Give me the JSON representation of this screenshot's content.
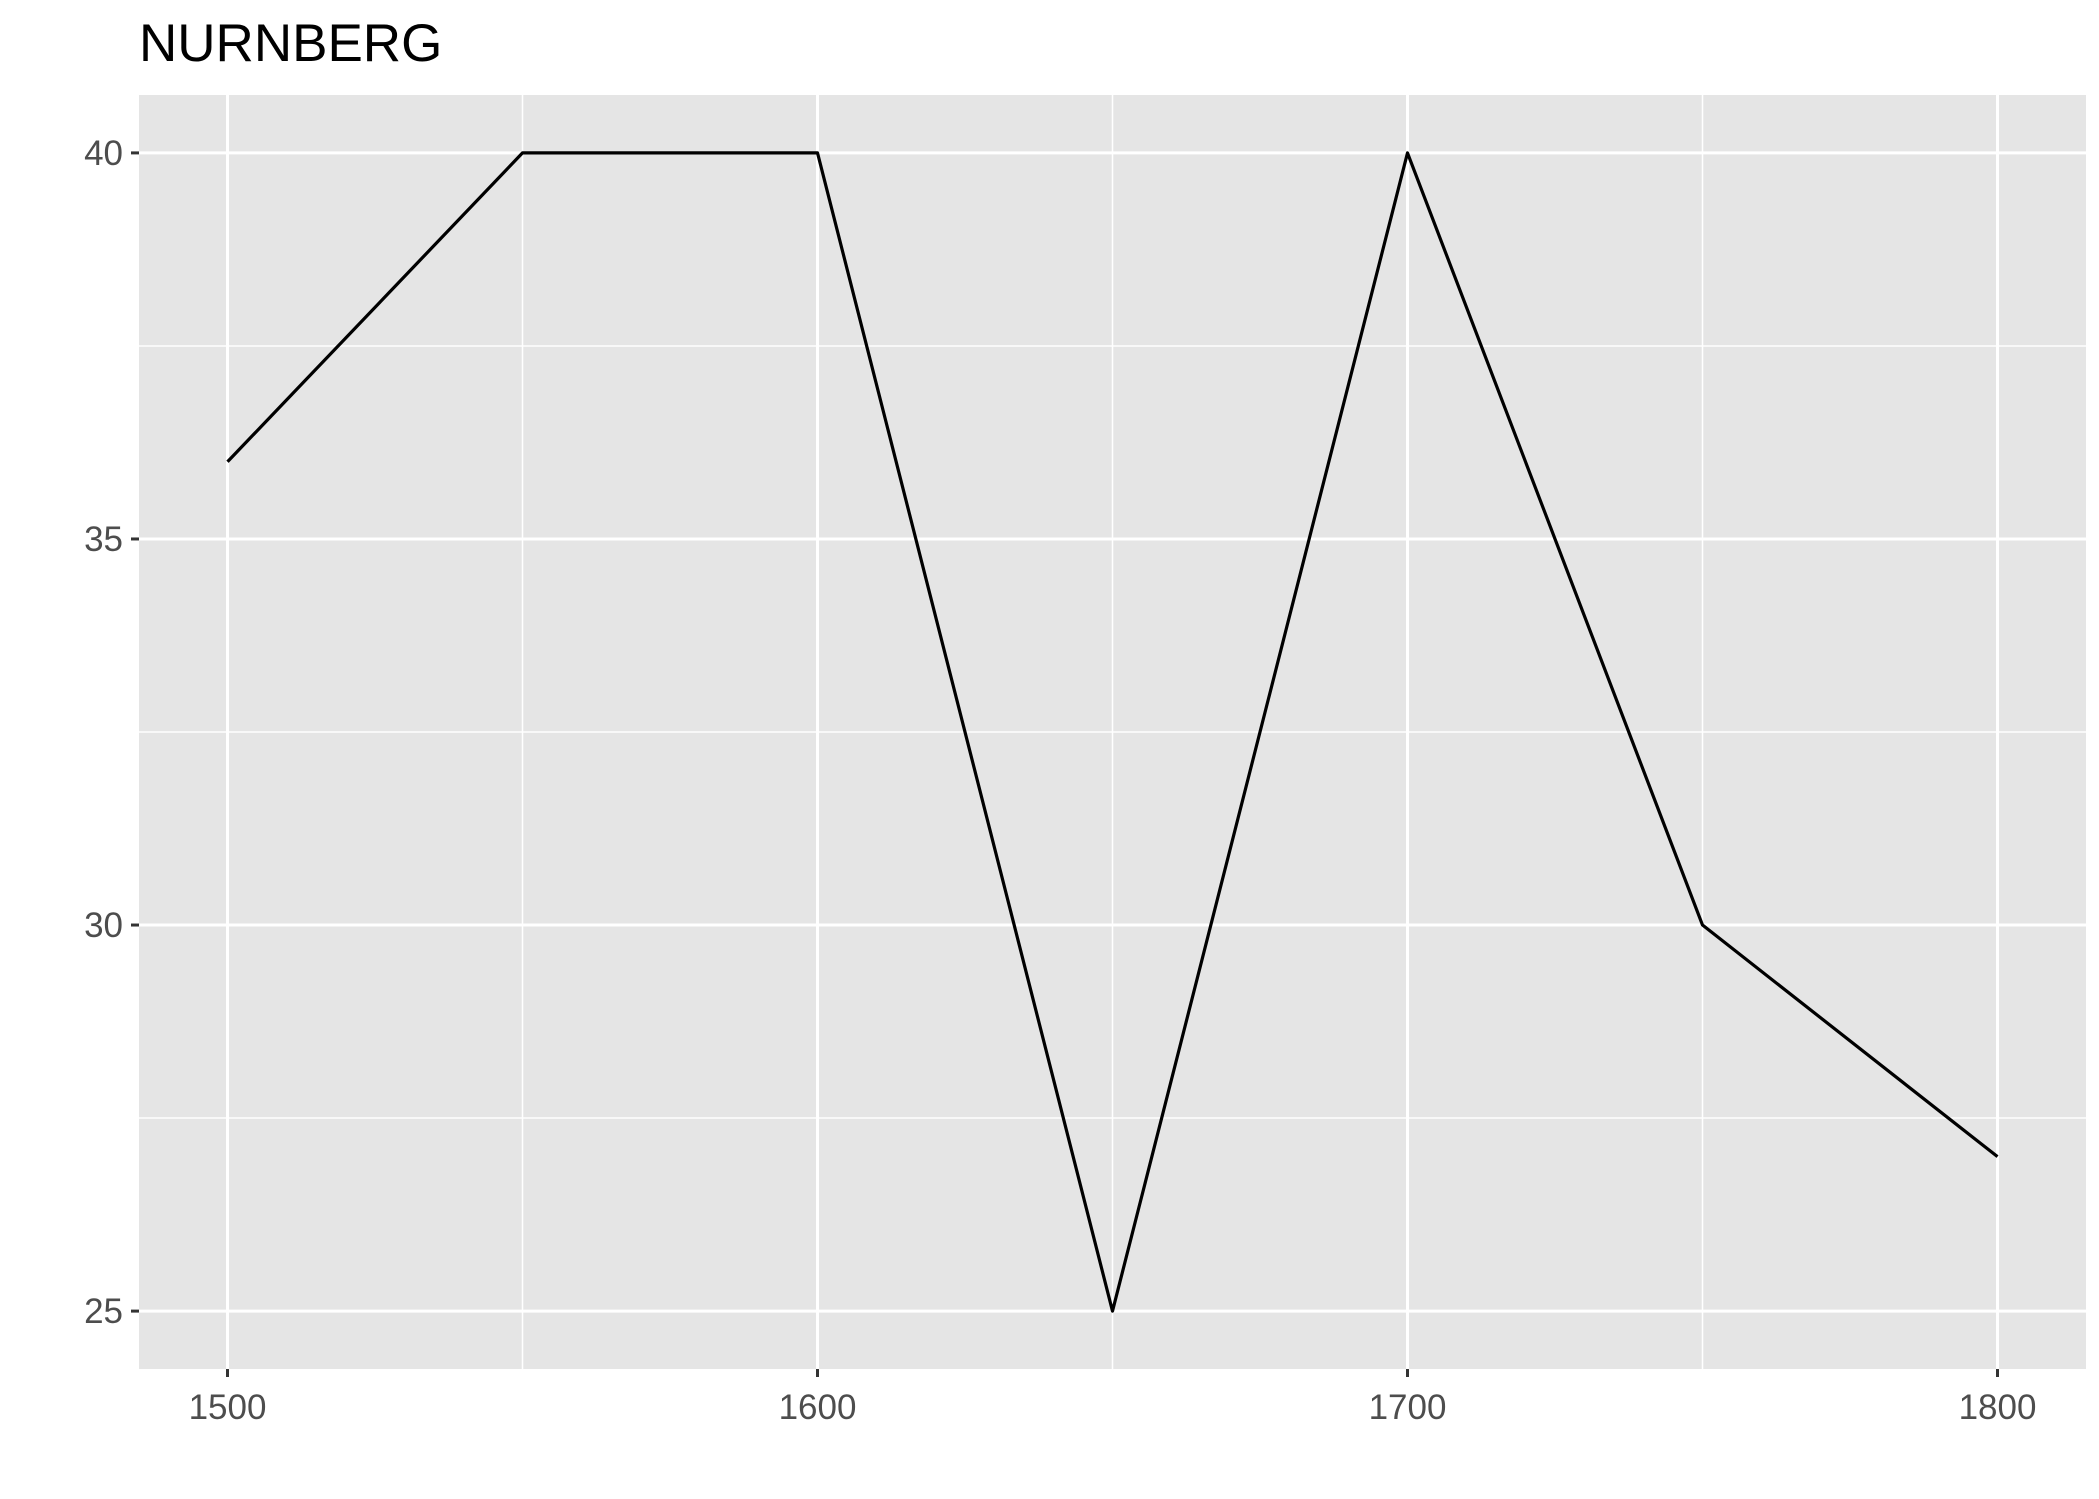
{
  "chart_data": {
    "type": "line",
    "title": "NURNBERG",
    "xlabel": "",
    "ylabel": "",
    "x": [
      1500,
      1550,
      1600,
      1650,
      1700,
      1750,
      1800
    ],
    "series": [
      {
        "values": [
          36,
          40,
          40,
          25,
          40,
          30,
          27
        ]
      }
    ],
    "xlim": [
      1485,
      1815
    ],
    "ylim": [
      24.25,
      40.75
    ],
    "x_ticks": [
      1500,
      1600,
      1700,
      1800
    ],
    "x_tick_labels": [
      "1500",
      "1600",
      "1700",
      "1800"
    ],
    "x_minor_ticks": [
      1550,
      1650,
      1750
    ],
    "y_ticks": [
      25,
      30,
      35,
      40
    ],
    "y_tick_labels": [
      "25",
      "30",
      "35",
      "40"
    ],
    "y_minor_ticks": [
      27.5,
      32.5,
      37.5
    ],
    "grid": true,
    "legend": "none",
    "colors": {
      "panel_background": "#e5e5e5",
      "grid_line": "#ffffff",
      "series_line": "#000000",
      "tick_label": "#4d4d4d",
      "tick_mark": "#333333",
      "title": "#000000"
    }
  }
}
